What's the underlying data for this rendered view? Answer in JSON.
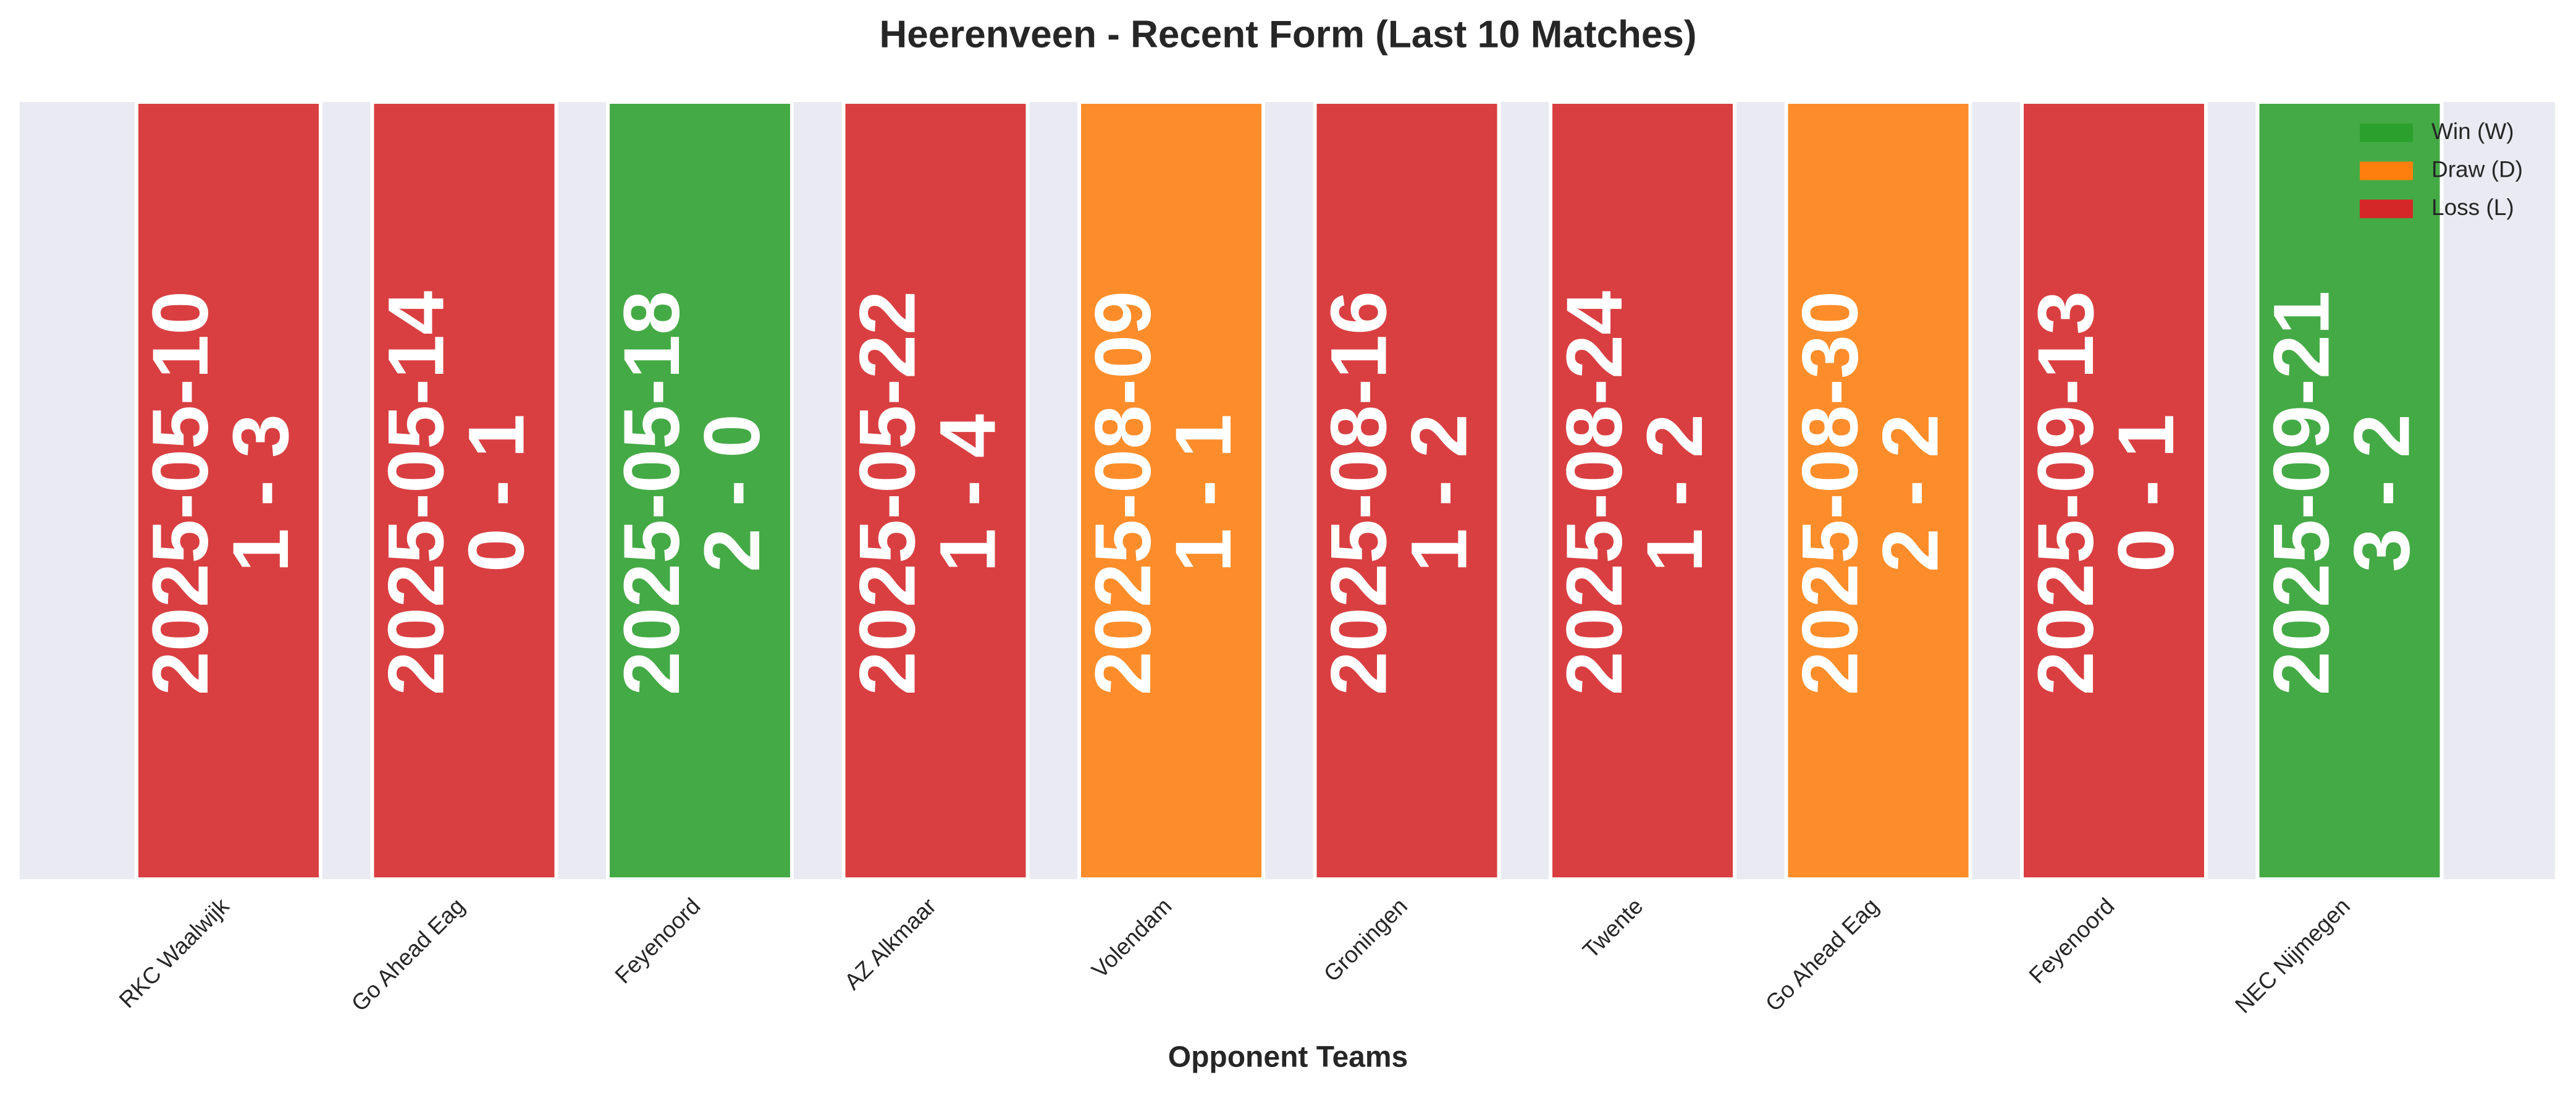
{
  "chart_data": {
    "type": "form",
    "title": "Heerenveen - Recent Form (Last 10 Matches)",
    "xlabel": "Opponent Teams",
    "categories": [
      "RKC Waalwijk",
      "Go Ahead Eag",
      "Feyenoord",
      "AZ Alkmaar",
      "Volendam",
      "Groningen",
      "Twente",
      "Go Ahead Eag",
      "Feyenoord",
      "NEC Nijmegen"
    ],
    "dates": [
      "2025-05-10",
      "2025-05-14",
      "2025-05-18",
      "2025-05-22",
      "2025-08-09",
      "2025-08-16",
      "2025-08-24",
      "2025-08-30",
      "2025-09-13",
      "2025-09-21"
    ],
    "scores": [
      "1 - 3",
      "0 - 1",
      "2 - 0",
      "1 - 4",
      "1 - 1",
      "1 - 2",
      "1 - 2",
      "2 - 2",
      "0 - 1",
      "3 - 2"
    ],
    "colors": [
      "#d62728",
      "#d62728",
      "#2ca02c",
      "#d62728",
      "#ff7f0e",
      "#d62728",
      "#d62728",
      "#ff7f0e",
      "#d62728",
      "#2ca02c"
    ],
    "legend": [
      {
        "name": "Win (W)",
        "color": "#2ca02c"
      },
      {
        "name": "Draw (D)",
        "color": "#ff7f0e"
      },
      {
        "name": "Loss (L)",
        "color": "#d62728"
      }
    ],
    "legend_loc": "upper right"
  }
}
